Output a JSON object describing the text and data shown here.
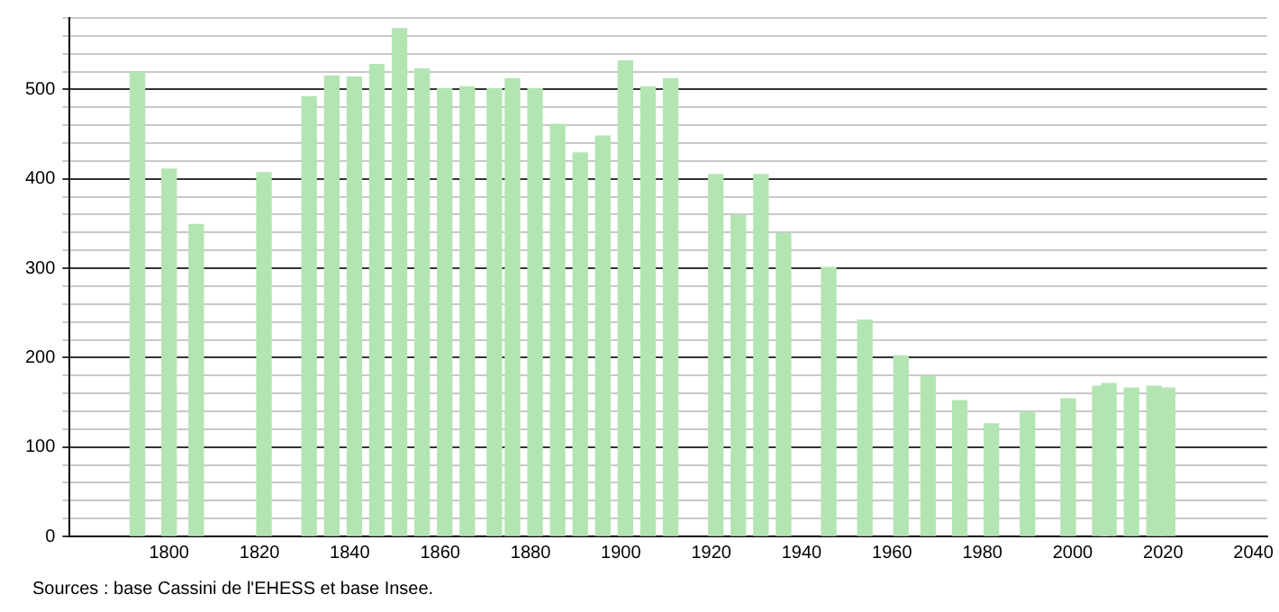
{
  "chart_data": {
    "type": "bar",
    "x": [
      1793,
      1800,
      1806,
      1821,
      1831,
      1836,
      1841,
      1846,
      1851,
      1856,
      1861,
      1866,
      1872,
      1876,
      1881,
      1886,
      1891,
      1896,
      1901,
      1906,
      1911,
      1921,
      1926,
      1931,
      1936,
      1946,
      1954,
      1962,
      1968,
      1975,
      1982,
      1990,
      1999,
      2006,
      2008,
      2013,
      2018,
      2021
    ],
    "values": [
      519,
      411,
      349,
      407,
      492,
      515,
      514,
      528,
      568,
      523,
      501,
      503,
      501,
      512,
      501,
      461,
      429,
      448,
      532,
      503,
      512,
      405,
      359,
      405,
      339,
      301,
      242,
      202,
      179,
      152,
      126,
      139,
      154,
      168,
      171,
      166,
      168,
      166
    ],
    "color": "#b3e5b3",
    "xlim": [
      1778,
      2043
    ],
    "xticks": [
      1800,
      1820,
      1840,
      1860,
      1880,
      1900,
      1920,
      1940,
      1960,
      1980,
      2000,
      2020,
      2040
    ],
    "ylim": [
      0,
      580
    ],
    "yticks": [
      0,
      {
        "value": 20,
        "label": null
      },
      {
        "value": 40,
        "label": null
      },
      {
        "value": 60,
        "label": null
      },
      {
        "value": 80,
        "label": null
      },
      100,
      {
        "value": 120,
        "label": null
      },
      {
        "value": 140,
        "label": null
      },
      {
        "value": 160,
        "label": null
      },
      {
        "value": 180,
        "label": null
      },
      200,
      {
        "value": 220,
        "label": null
      },
      {
        "value": 240,
        "label": null
      },
      {
        "value": 260,
        "label": null
      },
      {
        "value": 280,
        "label": null
      },
      300,
      {
        "value": 320,
        "label": null
      },
      {
        "value": 340,
        "label": null
      },
      {
        "value": 360,
        "label": null
      },
      {
        "value": 380,
        "label": null
      },
      400,
      {
        "value": 420,
        "label": null
      },
      {
        "value": 440,
        "label": null
      },
      {
        "value": 460,
        "label": null
      },
      {
        "value": 480,
        "label": null
      },
      500,
      {
        "value": 520,
        "label": null
      },
      {
        "value": 540,
        "label": null
      },
      {
        "value": 560,
        "label": null
      },
      {
        "value": 580,
        "label": null
      }
    ],
    "grid": "y",
    "annotations": [
      "Sources : base Cassini de l'EHESS et base Insee."
    ]
  }
}
